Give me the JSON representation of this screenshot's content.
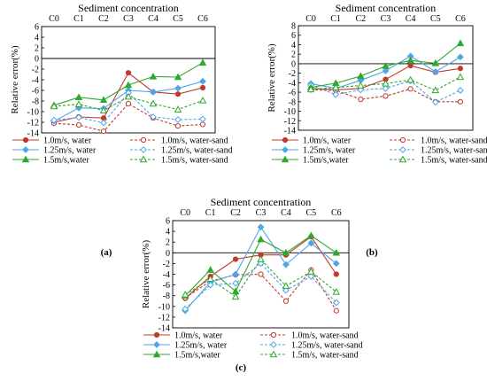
{
  "figure": {
    "panels": [
      {
        "id": "a",
        "caption": "(a)",
        "title": "Sediment concentration",
        "ylabel": "Relative error(%)",
        "yticks": [
          "6",
          "4",
          "2",
          "0",
          "-2",
          "-4",
          "-6",
          "-8",
          "-10",
          "-12",
          "-14"
        ],
        "legend": [
          "1.0m/s, water",
          "1.0m/s, water-sand",
          "1.25m/s, water",
          "1.25m/s, water-sand",
          "1.5m/s,water",
          "1.5m/s, water-sand"
        ]
      },
      {
        "id": "b",
        "caption": "(b)",
        "title": "Sediment concentration",
        "ylabel": "Relative error(%)",
        "yticks": [
          "8",
          "6",
          "4",
          "2",
          "0",
          "-2",
          "-4",
          "-6",
          "-8",
          "-10",
          "-12",
          "-14"
        ],
        "legend": [
          "1.0m/s, water",
          "1.0m/s, water-sand",
          "1.25m/s, water",
          "1.25m/s, water-sand",
          "1.5m/s,water",
          "1.5m/s, water-sand"
        ]
      },
      {
        "id": "c",
        "caption": "(c)",
        "title": "Sediment concentration",
        "ylabel": "Relative error(%)",
        "yticks": [
          "6",
          "4",
          "2",
          "0",
          "-2",
          "-4",
          "-6",
          "-8",
          "-10",
          "-12",
          "-14"
        ],
        "legend": [
          "1.0m/s, water",
          "1.0m/s, water-sand",
          "1.25m/s, water",
          "1.25m/s, water-sand",
          "1.5m/s,water",
          "1.5m/s, water-sand"
        ]
      }
    ]
  },
  "chart_data": [
    {
      "type": "line",
      "categories": [
        "C0",
        "C1",
        "C2",
        "C3",
        "C4",
        "C5",
        "C6"
      ],
      "ylim": [
        -14,
        6
      ],
      "title": "Sediment concentration",
      "ylabel": "Relative error(%)",
      "legend_position": "bottom",
      "series": [
        {
          "name": "1.0m/s, water",
          "color": "#c0392b",
          "dash": false,
          "marker": "circle-filled",
          "values": [
            -12,
            -11,
            -11.2,
            -2.7,
            -6.3,
            -6.7,
            -5.5
          ]
        },
        {
          "name": "1.0m/s, water-sand",
          "color": "#c0392b",
          "dash": true,
          "marker": "circle-open",
          "values": [
            -12.2,
            -12.5,
            -13.7,
            -8.5,
            -11.2,
            -12.7,
            -12.4
          ]
        },
        {
          "name": "1.25m/s, water",
          "color": "#4da6e8",
          "dash": false,
          "marker": "diamond-filled",
          "values": [
            -11.8,
            -9.3,
            -9.4,
            -6,
            -6.3,
            -5.6,
            -4.3
          ]
        },
        {
          "name": "1.25m/s, water-sand",
          "color": "#4da6e8",
          "dash": true,
          "marker": "diamond-open",
          "values": [
            -11.6,
            -11.1,
            -12.1,
            -6.5,
            -11,
            -11.5,
            -11.4
          ]
        },
        {
          "name": "1.5m/s,water",
          "color": "#2ea82e",
          "dash": false,
          "marker": "triangle-filled",
          "values": [
            -8.8,
            -7.3,
            -7.8,
            -5,
            -3.4,
            -3.5,
            -0.8
          ]
        },
        {
          "name": "1.5m/s, water-sand",
          "color": "#2ea82e",
          "dash": true,
          "marker": "triangle-open",
          "values": [
            -9,
            -8.6,
            -9.8,
            -7.2,
            -8.5,
            -9.6,
            -7.9
          ]
        }
      ]
    },
    {
      "type": "line",
      "categories": [
        "C0",
        "C1",
        "C2",
        "C3",
        "C4",
        "C5",
        "C6"
      ],
      "ylim": [
        -14,
        8
      ],
      "title": "Sediment concentration",
      "ylabel": "Relative error(%)",
      "legend_position": "bottom",
      "series": [
        {
          "name": "1.0m/s, water",
          "color": "#c0392b",
          "dash": false,
          "marker": "circle-filled",
          "values": [
            -5.2,
            -5.5,
            -5.2,
            -3.3,
            -0.4,
            -1.8,
            -1
          ]
        },
        {
          "name": "1.0m/s, water-sand",
          "color": "#c0392b",
          "dash": true,
          "marker": "circle-open",
          "values": [
            -5.5,
            -5.6,
            -7.5,
            -6.8,
            -5.3,
            -8,
            -8
          ]
        },
        {
          "name": "1.25m/s, water",
          "color": "#4da6e8",
          "dash": false,
          "marker": "diamond-filled",
          "values": [
            -4.2,
            -5.2,
            -3.5,
            -1.5,
            1.6,
            -1.7,
            1.4
          ]
        },
        {
          "name": "1.25m/s, water-sand",
          "color": "#4da6e8",
          "dash": true,
          "marker": "diamond-open",
          "values": [
            -4.5,
            -6.5,
            -5.5,
            -5.2,
            -3.6,
            -8.1,
            -5.6
          ]
        },
        {
          "name": "1.5m/s,water",
          "color": "#2ea82e",
          "dash": false,
          "marker": "triangle-filled",
          "values": [
            -5,
            -4.1,
            -2.6,
            -0.5,
            0.7,
            0.1,
            4.3
          ]
        },
        {
          "name": "1.5m/s, water-sand",
          "color": "#2ea82e",
          "dash": true,
          "marker": "triangle-open",
          "values": [
            -5.4,
            -5,
            -4.6,
            -4.2,
            -3.4,
            -5.6,
            -2.8
          ]
        }
      ]
    },
    {
      "type": "line",
      "categories": [
        "C0",
        "C1",
        "C2",
        "C3",
        "C4",
        "C5",
        "C6"
      ],
      "ylim": [
        -14,
        6
      ],
      "title": "Sediment concentration",
      "ylabel": "Relative error(%)",
      "legend_position": "bottom",
      "series": [
        {
          "name": "1.0m/s, water",
          "color": "#c0392b",
          "dash": false,
          "marker": "circle-filled",
          "values": [
            -8.5,
            -4.4,
            -1.2,
            -0.4,
            -0.4,
            3,
            -4
          ]
        },
        {
          "name": "1.0m/s, water-sand",
          "color": "#c0392b",
          "dash": true,
          "marker": "circle-open",
          "values": [
            -8.4,
            -5.3,
            -4.1,
            -4,
            -9,
            -3.2,
            -10.8
          ]
        },
        {
          "name": "1.25m/s, water",
          "color": "#4da6e8",
          "dash": false,
          "marker": "diamond-filled",
          "values": [
            -10.8,
            -5.5,
            -4,
            4.8,
            -2.2,
            1.8,
            -2
          ]
        },
        {
          "name": "1.25m/s, water-sand",
          "color": "#4da6e8",
          "dash": true,
          "marker": "diamond-open",
          "values": [
            -10.5,
            -6,
            -5.7,
            -2,
            -7,
            -4.4,
            -9.3
          ]
        },
        {
          "name": "1.5m/s,water",
          "color": "#2ea82e",
          "dash": false,
          "marker": "triangle-filled",
          "values": [
            -8,
            -3.2,
            -7.2,
            2.5,
            0,
            3.2,
            0
          ]
        },
        {
          "name": "1.5m/s, water-sand",
          "color": "#2ea82e",
          "dash": true,
          "marker": "triangle-open",
          "values": [
            -7.8,
            -4.9,
            -8.2,
            -1.2,
            -6.2,
            -3.5,
            -7.3
          ]
        }
      ]
    }
  ]
}
